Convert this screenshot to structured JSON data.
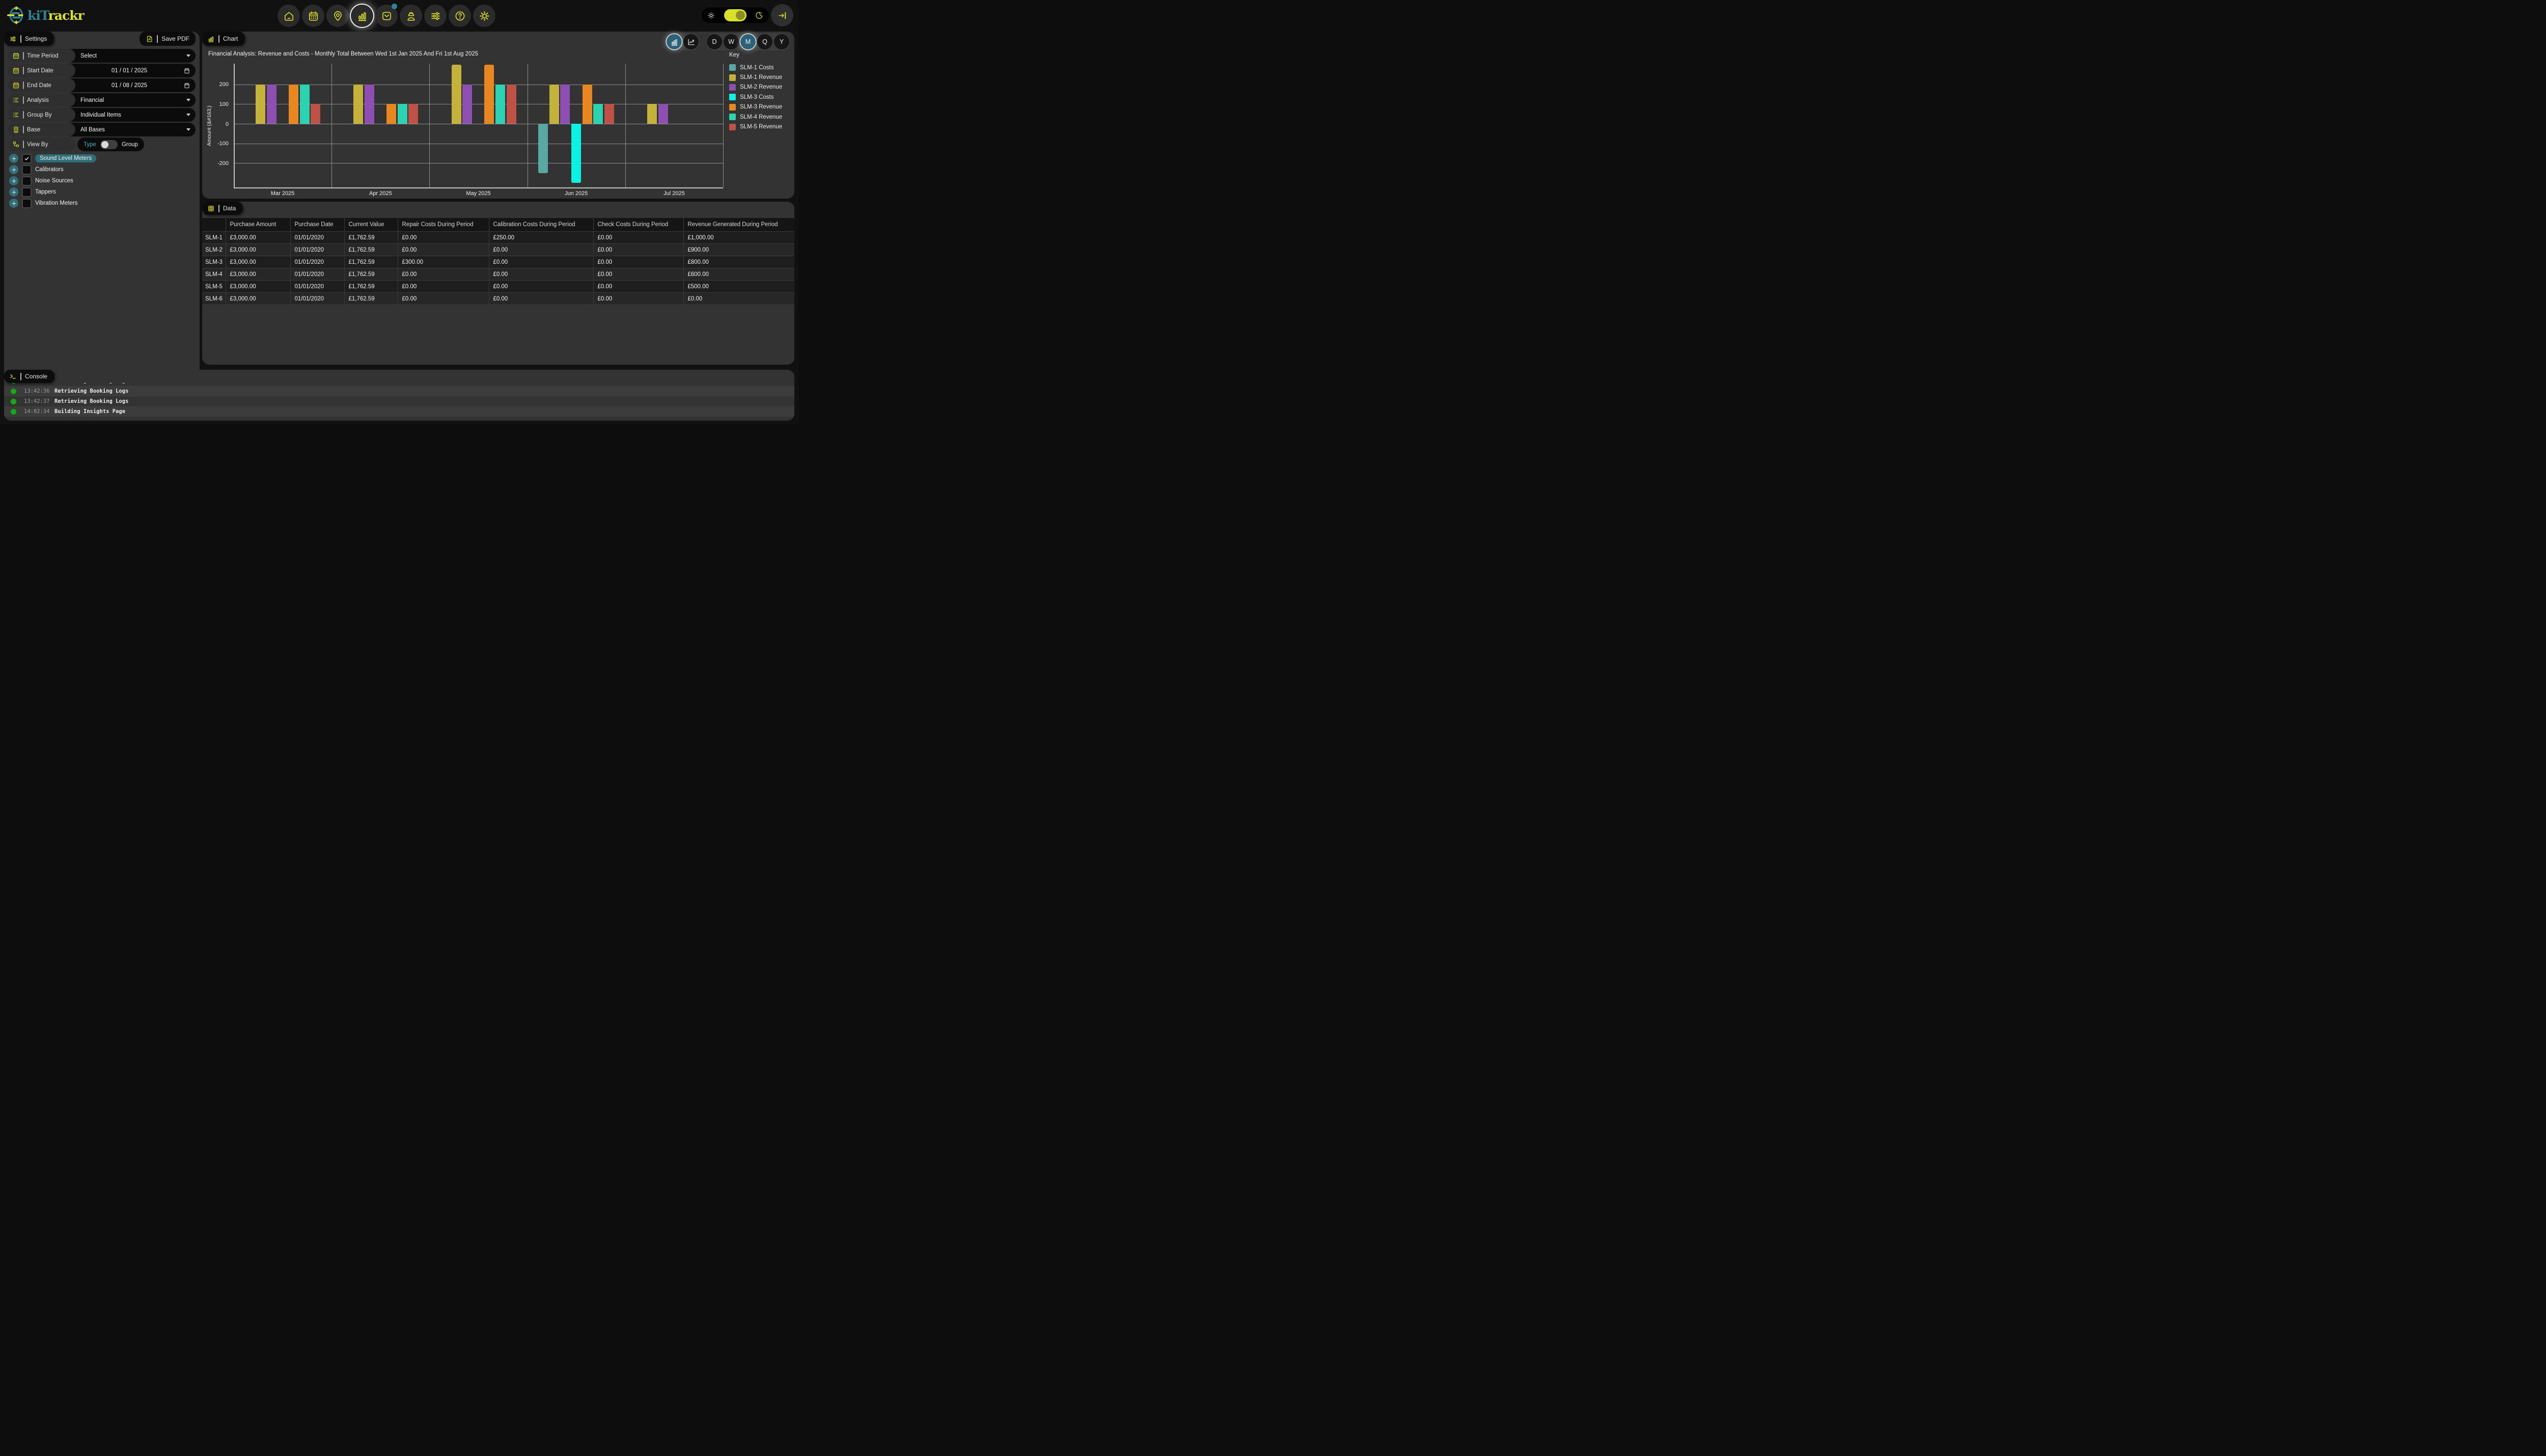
{
  "brand": {
    "part1": "kiT",
    "part2": "rackr"
  },
  "header": {
    "nav": [
      {
        "name": "home"
      },
      {
        "name": "calendar"
      },
      {
        "name": "location"
      },
      {
        "name": "insights",
        "active": true
      },
      {
        "name": "mail",
        "notification": true
      },
      {
        "name": "worker"
      },
      {
        "name": "sliders"
      },
      {
        "name": "help"
      },
      {
        "name": "settings"
      }
    ],
    "theme_toggle": {
      "state": "light-selected",
      "knob_side": "right"
    }
  },
  "sidebar": {
    "tab_label": "Settings",
    "save_pdf_label": "Save PDF",
    "fields": [
      {
        "icon": "calendar",
        "label": "Time Period",
        "value": "Select",
        "control": "dropdown"
      },
      {
        "icon": "calendar",
        "label": "Start Date",
        "value": "01 / 01 / 2025",
        "control": "date"
      },
      {
        "icon": "calendar",
        "label": "End Date",
        "value": "01 / 08 / 2025",
        "control": "date"
      },
      {
        "icon": "list",
        "label": "Analysis",
        "value": "Financial",
        "control": "dropdown"
      },
      {
        "icon": "list",
        "label": "Group By",
        "value": "Individual Items",
        "control": "dropdown"
      },
      {
        "icon": "building",
        "label": "Base",
        "value": "All Bases",
        "control": "dropdown"
      },
      {
        "icon": "tree",
        "label": "View By",
        "control": "toggle",
        "toggle": {
          "left": "Type",
          "right": "Group",
          "active": "Type"
        }
      }
    ],
    "equipment": [
      {
        "label": "Sound Level Meters",
        "checked": true
      },
      {
        "label": "Calibrators",
        "checked": false
      },
      {
        "label": "Noise Sources",
        "checked": false
      },
      {
        "label": "Tappers",
        "checked": false
      },
      {
        "label": "Vibration Meters",
        "checked": false
      }
    ]
  },
  "chart_panel": {
    "tab_label": "Chart",
    "view_buttons": [
      "bar-chart",
      "line-chart"
    ],
    "active_view": "bar-chart",
    "period_buttons": [
      "D",
      "W",
      "M",
      "Q",
      "Y"
    ],
    "active_period": "M"
  },
  "chart_data": {
    "type": "bar",
    "title": "Financial Analysis: Revenue and Costs - Monthly Total Between Wed 1st Jan 2025 And Fri 1st Aug 2025",
    "ylabel": "Amount (&#163;)",
    "legend_title": "Key",
    "legend_position": "right",
    "grid": true,
    "categories": [
      "Mar 2025",
      "Apr 2025",
      "May 2025",
      "Jun 2025",
      "Jul 2025"
    ],
    "y_ticks": [
      200,
      100,
      0,
      -100,
      -200
    ],
    "ylim": [
      -330,
      310
    ],
    "series": [
      {
        "name": "SLM-1 Costs",
        "color": "#5aa8a2",
        "values": [
          0,
          0,
          0,
          -250,
          0
        ]
      },
      {
        "name": "SLM-1 Revenue",
        "color": "#c4b23b",
        "values": [
          200,
          200,
          300,
          200,
          100
        ]
      },
      {
        "name": "SLM-2 Revenue",
        "color": "#8e4fb2",
        "values": [
          200,
          200,
          200,
          200,
          100
        ]
      },
      {
        "name": "SLM-3 Costs",
        "color": "#0af2e4",
        "values": [
          0,
          0,
          0,
          -300,
          0
        ]
      },
      {
        "name": "SLM-3 Revenue",
        "color": "#e8861f",
        "values": [
          200,
          100,
          300,
          200,
          0
        ]
      },
      {
        "name": "SLM-4 Revenue",
        "color": "#2cd3b2",
        "values": [
          200,
          100,
          200,
          100,
          0
        ]
      },
      {
        "name": "SLM-5 Revenue",
        "color": "#bf5246",
        "values": [
          100,
          100,
          200,
          100,
          0
        ]
      }
    ]
  },
  "data_panel": {
    "tab_label": "Data",
    "columns": [
      "",
      "Purchase Amount",
      "Purchase Date",
      "Current Value",
      "Repair Costs During Period",
      "Calibration Costs During Period",
      "Check Costs During Period",
      "Revenue Generated During Period"
    ],
    "rows": [
      {
        "id": "SLM-1",
        "cells": [
          "£3,000.00",
          "01/01/2020",
          "£1,762.59",
          "£0.00",
          "£250.00",
          "£0.00",
          "£1,000.00"
        ]
      },
      {
        "id": "SLM-2",
        "cells": [
          "£3,000.00",
          "01/01/2020",
          "£1,762.59",
          "£0.00",
          "£0.00",
          "£0.00",
          "£900.00"
        ]
      },
      {
        "id": "SLM-3",
        "cells": [
          "£3,000.00",
          "01/01/2020",
          "£1,762.59",
          "£300.00",
          "£0.00",
          "£0.00",
          "£800.00"
        ]
      },
      {
        "id": "SLM-4",
        "cells": [
          "£3,000.00",
          "01/01/2020",
          "£1,762.59",
          "£0.00",
          "£0.00",
          "£0.00",
          "£600.00"
        ]
      },
      {
        "id": "SLM-5",
        "cells": [
          "£3,000.00",
          "01/01/2020",
          "£1,762.59",
          "£0.00",
          "£0.00",
          "£0.00",
          "£500.00"
        ]
      },
      {
        "id": "SLM-6",
        "cells": [
          "£3,000.00",
          "01/01/2020",
          "£1,762.59",
          "£0.00",
          "£0.00",
          "£0.00",
          "£0.00"
        ]
      }
    ]
  },
  "console": {
    "tab_label": "Console",
    "clipped_entry": {
      "message": "Retrieving Booking Logs"
    },
    "entries": [
      {
        "time": "13:42:36",
        "message": "Retrieving Booking Logs"
      },
      {
        "time": "13:42:37",
        "message": "Retrieving Booking Logs"
      },
      {
        "time": "14:02:34",
        "message": "Building Insights Page"
      }
    ]
  },
  "colors": {
    "accent_yellow": "#d9e02b",
    "accent_teal": "#2e8294",
    "active_button_teal": "#2d6177",
    "selected_pill_teal": "#2f6d79",
    "console_green": "#1fa31f",
    "panel_gray": "#333333",
    "background": "#111111"
  }
}
